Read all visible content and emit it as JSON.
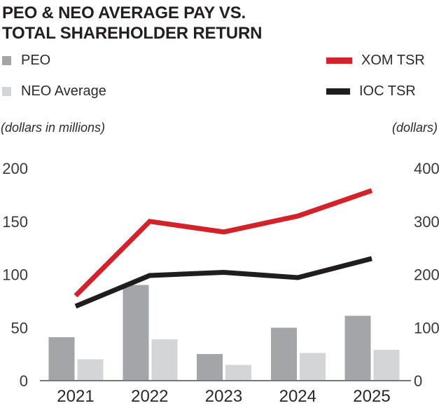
{
  "title": {
    "line1": "PEO & NEO AVERAGE PAY VS.",
    "line2": "TOTAL SHAREHOLDER RETURN"
  },
  "legend": {
    "items": [
      {
        "label": "PEO",
        "swatch": "square",
        "color": "#A3A5A8"
      },
      {
        "label": "NEO Average",
        "swatch": "square",
        "color": "#D4D5D7"
      },
      {
        "label": "XOM TSR",
        "swatch": "line",
        "color": "#D2232A"
      },
      {
        "label": "IOC TSR",
        "swatch": "line",
        "color": "#211D1E"
      }
    ]
  },
  "axis_units": {
    "left": "(dollars in millions)",
    "right": "(dollars)"
  },
  "chart_data": {
    "type": "combo-bar-line",
    "title": "PEO & NEO AVERAGE PAY VS. TOTAL SHAREHOLDER RETURN",
    "categories": [
      "2021",
      "2022",
      "2023",
      "2024",
      "2025"
    ],
    "bar_series": [
      {
        "name": "PEO",
        "axis": "left",
        "color": "#A3A5A8",
        "values": [
          41,
          90,
          25,
          50,
          61
        ]
      },
      {
        "name": "NEO Average",
        "axis": "left",
        "color": "#D4D5D7",
        "values": [
          20,
          39,
          15,
          26,
          29
        ]
      }
    ],
    "line_series": [
      {
        "name": "XOM TSR",
        "axis": "right",
        "color": "#D2232A",
        "values": [
          160,
          300,
          280,
          310,
          358
        ]
      },
      {
        "name": "IOC TSR",
        "axis": "right",
        "color": "#211D1E",
        "values": [
          140,
          198,
          204,
          194,
          230
        ]
      }
    ],
    "left_axis": {
      "label": "(dollars in millions)",
      "ticks": [
        0,
        50,
        100,
        150,
        200
      ],
      "min": 0,
      "max": 200
    },
    "right_axis": {
      "label": "(dollars)",
      "ticks": [
        0,
        100,
        200,
        300,
        400
      ],
      "min": 0,
      "max": 400
    },
    "grid": "off",
    "legend_position": "top",
    "tick_color": "#3B3A3A",
    "axis_line_color": "#77787B"
  }
}
